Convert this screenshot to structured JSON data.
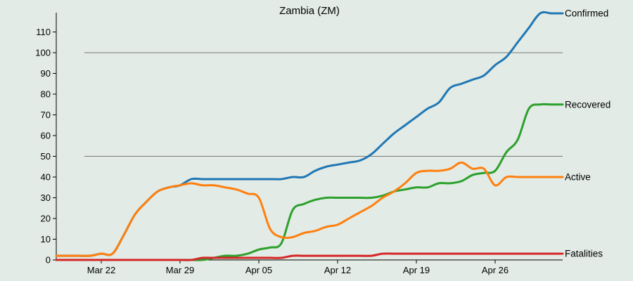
{
  "chart_data": {
    "type": "line",
    "title": "Zambia (ZM)",
    "xlabel": "",
    "ylabel": "",
    "ylim": [
      0,
      120
    ],
    "y_ticks": [
      0,
      10,
      20,
      30,
      40,
      50,
      60,
      70,
      80,
      90,
      100,
      110
    ],
    "x_tick_labels": [
      "Mar 22",
      "Mar 29",
      "Apr 05",
      "Apr 12",
      "Apr 19",
      "Apr 26"
    ],
    "x": [
      "Mar 18",
      "Mar 19",
      "Mar 20",
      "Mar 21",
      "Mar 22",
      "Mar 23",
      "Mar 24",
      "Mar 25",
      "Mar 26",
      "Mar 27",
      "Mar 28",
      "Mar 29",
      "Mar 30",
      "Mar 31",
      "Apr 01",
      "Apr 02",
      "Apr 03",
      "Apr 04",
      "Apr 05",
      "Apr 06",
      "Apr 07",
      "Apr 08",
      "Apr 09",
      "Apr 10",
      "Apr 11",
      "Apr 12",
      "Apr 13",
      "Apr 14",
      "Apr 15",
      "Apr 16",
      "Apr 17",
      "Apr 18",
      "Apr 19",
      "Apr 20",
      "Apr 21",
      "Apr 22",
      "Apr 23",
      "Apr 24",
      "Apr 25",
      "Apr 26",
      "Apr 27",
      "Apr 28",
      "Apr 29",
      "Apr 30",
      "May 01",
      "May 02"
    ],
    "gridlines": [
      50,
      100
    ],
    "legend": "right-end labels",
    "series": [
      {
        "name": "Confirmed",
        "color": "#1f77b4",
        "values": [
          2,
          2,
          2,
          2,
          3,
          3,
          12,
          22,
          28,
          33,
          35,
          36,
          39,
          39,
          39,
          39,
          39,
          39,
          39,
          39,
          39,
          40,
          40,
          43,
          45,
          46,
          47,
          48,
          51,
          56,
          61,
          65,
          69,
          73,
          76,
          83,
          85,
          87,
          89,
          94,
          98,
          105,
          112,
          119,
          119,
          119
        ]
      },
      {
        "name": "Recovered",
        "color": "#2ca02c",
        "values": [
          0,
          0,
          0,
          0,
          0,
          0,
          0,
          0,
          0,
          0,
          0,
          0,
          0,
          0,
          1,
          2,
          2,
          3,
          5,
          6,
          8,
          24,
          27,
          29,
          30,
          30,
          30,
          30,
          30,
          31,
          33,
          34,
          35,
          35,
          37,
          37,
          38,
          41,
          42,
          43,
          52,
          58,
          73,
          75,
          75,
          75
        ]
      },
      {
        "name": "Active",
        "color": "#ff7f0e",
        "values": [
          2,
          2,
          2,
          2,
          3,
          3,
          12,
          22,
          28,
          33,
          35,
          36,
          37,
          36,
          36,
          35,
          34,
          32,
          30,
          15,
          11,
          11,
          13,
          14,
          16,
          17,
          20,
          23,
          26,
          30,
          33,
          37,
          42,
          43,
          43,
          44,
          47,
          44,
          44,
          36,
          40,
          40,
          40,
          40,
          40,
          40
        ]
      },
      {
        "name": "Fatalities",
        "color": "#d62728",
        "values": [
          0,
          0,
          0,
          0,
          0,
          0,
          0,
          0,
          0,
          0,
          0,
          0,
          0,
          1,
          1,
          1,
          1,
          1,
          1,
          1,
          1,
          2,
          2,
          2,
          2,
          2,
          2,
          2,
          2,
          3,
          3,
          3,
          3,
          3,
          3,
          3,
          3,
          3,
          3,
          3,
          3,
          3,
          3,
          3,
          3,
          3
        ]
      }
    ]
  }
}
